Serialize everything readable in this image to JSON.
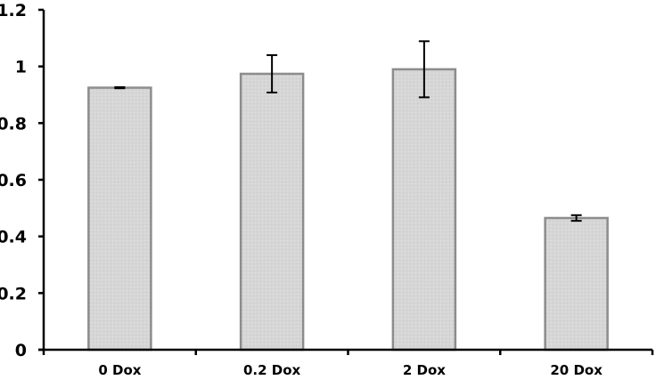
{
  "chart_data": {
    "type": "bar",
    "title": "",
    "xlabel": "",
    "ylabel": "",
    "categories": [
      "0 Dox",
      "0.2 Dox",
      "2 Dox",
      "20 Dox"
    ],
    "values": [
      0.925,
      0.974,
      0.99,
      0.465
    ],
    "error": [
      0.002,
      0.066,
      0.099,
      0.01
    ],
    "ylim": [
      0,
      1.2
    ],
    "yticks": [
      0,
      0.2,
      0.4,
      0.6,
      0.8,
      1,
      1.2
    ],
    "ytick_labels": [
      "0",
      "0.2",
      "0.4",
      "0.6",
      "0.8",
      "1",
      "1.2"
    ],
    "grid": false,
    "legend": null,
    "colors": {
      "bar_fill": "#d9d9d9",
      "bar_border": "#8c8c8c",
      "axis": "#000000",
      "error_bar": "#000000"
    }
  }
}
